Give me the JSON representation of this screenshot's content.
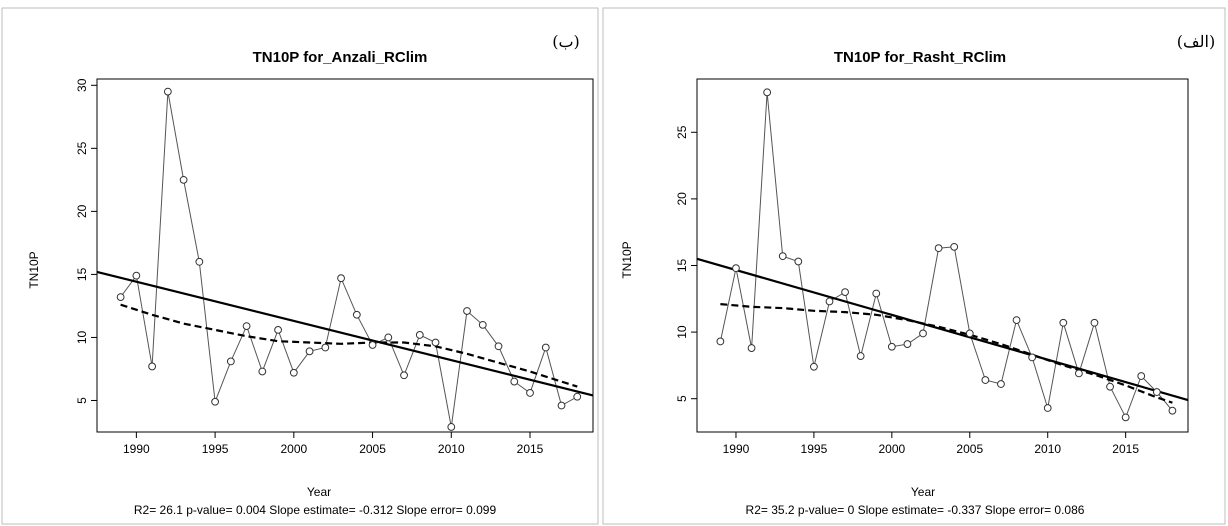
{
  "chart_data": [
    {
      "type": "line",
      "panel_tag": "(ب)",
      "title": "TN10P   for_Anzali_RClim",
      "xlabel": "Year",
      "ylabel": "TN10P",
      "stats": "R2= 26.1  p-value= 0.004  Slope estimate= -0.312  Slope error= 0.099",
      "xlim": [
        1987.5,
        2019
      ],
      "ylim": [
        2.5,
        30.5
      ],
      "xticks": [
        1990,
        1995,
        2000,
        2005,
        2010,
        2015
      ],
      "yticks": [
        5,
        10,
        15,
        20,
        25,
        30
      ],
      "x": [
        1989,
        1990,
        1991,
        1992,
        1993,
        1994,
        1995,
        1996,
        1997,
        1998,
        1999,
        2000,
        2001,
        2002,
        2003,
        2004,
        2005,
        2006,
        2007,
        2008,
        2009,
        2010,
        2011,
        2012,
        2013,
        2014,
        2015,
        2016,
        2017,
        2018
      ],
      "series": [
        {
          "values": [
            13.2,
            14.9,
            7.7,
            29.5,
            22.5,
            16.0,
            4.9,
            8.1,
            10.9,
            7.3,
            10.6,
            7.2,
            8.9,
            9.2,
            14.7,
            11.8,
            9.4,
            10.0,
            7.0,
            10.2,
            9.6,
            2.9,
            12.1,
            11.0,
            9.3,
            6.5,
            5.6,
            9.2,
            4.6,
            5.3
          ]
        }
      ],
      "trend_line": {
        "x": [
          1987.5,
          2019
        ],
        "y": [
          15.2,
          5.4
        ]
      },
      "smooth_line": {
        "x": [
          1989,
          1991,
          1993,
          1995,
          1997,
          1999,
          2001,
          2003,
          2005,
          2007,
          2009,
          2011,
          2013,
          2015,
          2017,
          2018
        ],
        "y": [
          12.6,
          11.8,
          11.1,
          10.6,
          10.1,
          9.7,
          9.6,
          9.5,
          9.6,
          9.6,
          9.3,
          8.7,
          8.0,
          7.3,
          6.5,
          6.1
        ]
      },
      "grid": false
    },
    {
      "type": "line",
      "panel_tag": "(الف)",
      "title": "TN10P   for_Rasht_RClim",
      "xlabel": "Year",
      "ylabel": "TN10P",
      "stats": "R2= 35.2  p-value= 0  Slope estimate= -0.337  Slope error= 0.086",
      "xlim": [
        1987.5,
        2019
      ],
      "ylim": [
        2.5,
        29
      ],
      "xticks": [
        1990,
        1995,
        2000,
        2005,
        2010,
        2015
      ],
      "yticks": [
        5,
        10,
        15,
        20,
        25
      ],
      "x": [
        1989,
        1990,
        1991,
        1992,
        1993,
        1994,
        1995,
        1996,
        1997,
        1998,
        1999,
        2000,
        2001,
        2002,
        2003,
        2004,
        2005,
        2006,
        2007,
        2008,
        2009,
        2010,
        2011,
        2012,
        2013,
        2014,
        2015,
        2016,
        2017,
        2018
      ],
      "series": [
        {
          "values": [
            9.3,
            14.8,
            8.8,
            28.0,
            15.7,
            15.3,
            7.4,
            12.3,
            13.0,
            8.2,
            12.9,
            8.9,
            9.1,
            9.9,
            16.3,
            16.4,
            9.9,
            6.4,
            6.1,
            10.9,
            8.1,
            4.3,
            10.7,
            6.9,
            10.7,
            5.9,
            3.6,
            6.7,
            5.5,
            4.1
          ]
        }
      ],
      "trend_line": {
        "x": [
          1987.5,
          2019
        ],
        "y": [
          15.5,
          4.9
        ]
      },
      "smooth_line": {
        "x": [
          1989,
          1991,
          1993,
          1995,
          1997,
          1999,
          2001,
          2003,
          2005,
          2007,
          2009,
          2011,
          2013,
          2015,
          2017,
          2018
        ],
        "y": [
          12.1,
          11.9,
          11.8,
          11.6,
          11.5,
          11.3,
          10.9,
          10.4,
          9.8,
          9.1,
          8.3,
          7.5,
          6.8,
          6.0,
          5.1,
          4.7
        ]
      },
      "grid": false
    }
  ]
}
